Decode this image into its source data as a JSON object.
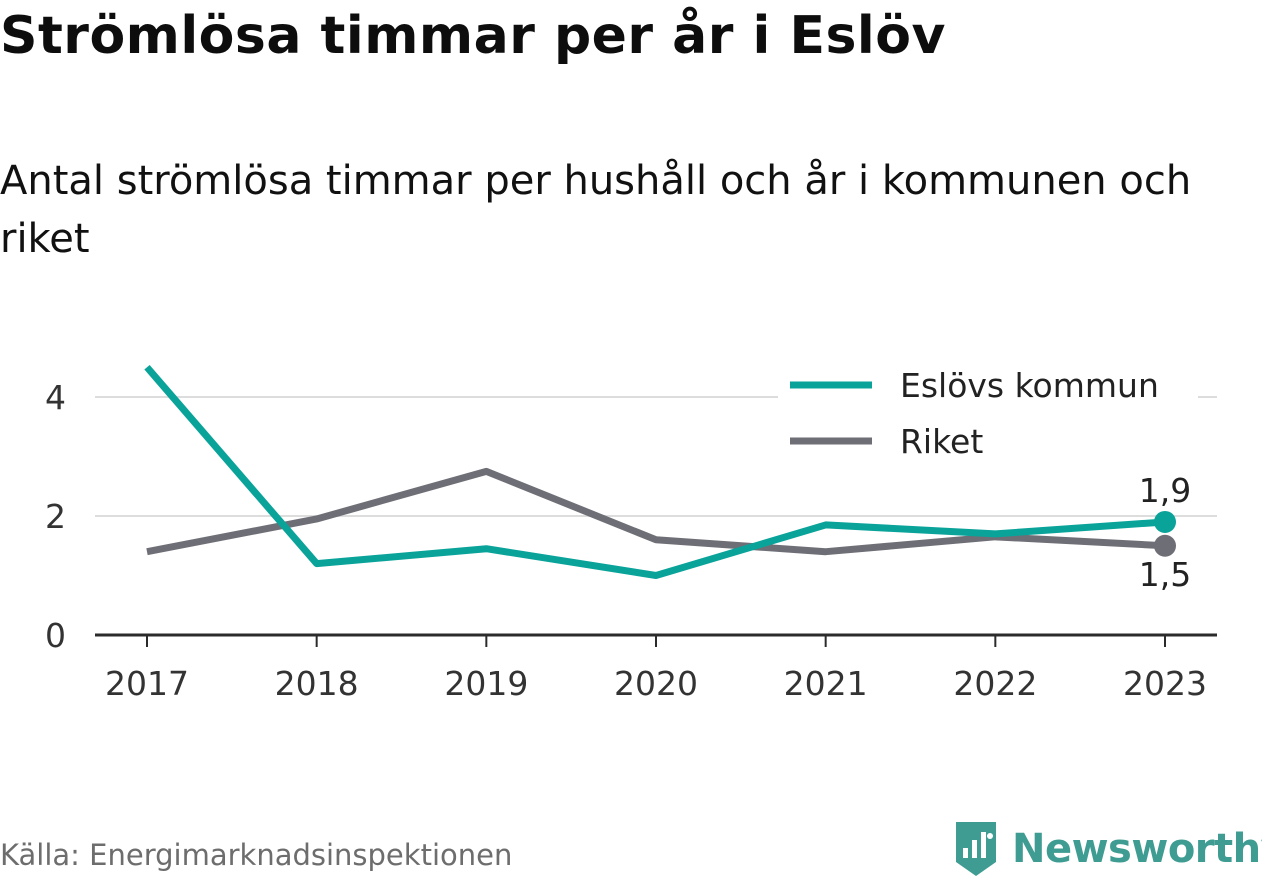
{
  "header": {
    "title": "Strömlösa timmar per år i Eslöv",
    "subtitle": "Antal strömlösa timmar per hushåll och år i kommunen och riket"
  },
  "footer": {
    "source": "Källa: Energimarknadsinspektionen",
    "brand": "Newsworthy",
    "brand_color": "#3f9c92"
  },
  "chart_data": {
    "type": "line",
    "categories": [
      "2017",
      "2018",
      "2019",
      "2020",
      "2021",
      "2022",
      "2023"
    ],
    "series": [
      {
        "name": "Eslövs kommun",
        "color": "#0aa39a",
        "values": [
          4.5,
          1.2,
          1.45,
          1.0,
          1.85,
          1.7,
          1.9
        ],
        "end_label": "1,9"
      },
      {
        "name": "Riket",
        "color": "#6e6e76",
        "values": [
          1.4,
          1.95,
          2.75,
          1.6,
          1.4,
          1.65,
          1.5
        ],
        "end_label": "1,5"
      }
    ],
    "yticks": [
      {
        "value": 0,
        "label": "0"
      },
      {
        "value": 2,
        "label": "2"
      },
      {
        "value": 4,
        "label": "4"
      }
    ],
    "ylim": [
      0,
      4.6
    ],
    "grid": true,
    "legend_position": "top-right"
  }
}
